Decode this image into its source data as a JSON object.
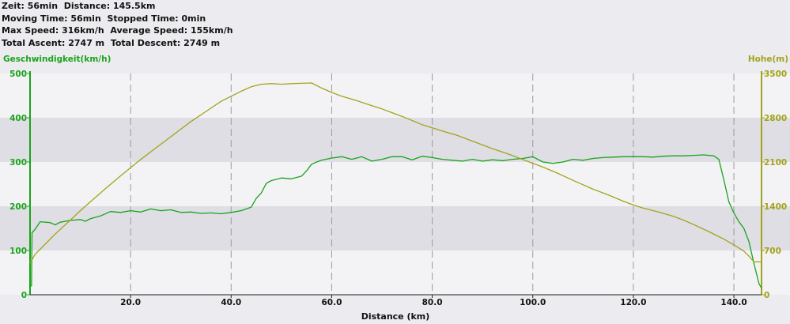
{
  "stats": {
    "line1": [
      "Zeit: 56min",
      "Distance: 145.5km"
    ],
    "line2": [
      "Moving Time: 56min",
      "Stopped Time: 0min"
    ],
    "line3": [
      "Max Speed: 316km/h",
      "Average Speed: 155km/h"
    ],
    "line4": [
      "Total Ascent: 2747 m",
      "Total Descent: 2749 m"
    ]
  },
  "chart_data": {
    "type": "line",
    "xlabel": "Distance (km)",
    "xlim": [
      0,
      145.5
    ],
    "x_ticks": [
      20,
      40,
      60,
      80,
      100,
      120,
      140
    ],
    "x_tick_labels": [
      "20.0",
      "40.0",
      "60.0",
      "80.0",
      "100.0",
      "120.0",
      "140.0"
    ],
    "grid": "vertical dashed lines, alternating horizontal bands",
    "left_axis": {
      "label": "Geschwindigkeit(km/h)",
      "range": [
        0,
        500
      ],
      "ticks": [
        0,
        100,
        200,
        300,
        400,
        500
      ],
      "color": "#1aa31a"
    },
    "right_axis": {
      "label": "Hohe(m)",
      "range": [
        0,
        3500
      ],
      "ticks": [
        0,
        700,
        1400,
        2100,
        2800,
        3500
      ],
      "color": "#a3a31a"
    },
    "series": [
      {
        "axis": "left",
        "color": "#1aa31a",
        "x": [
          0,
          0.3,
          0.4,
          1,
          2,
          4,
          5,
          6,
          8,
          10,
          11,
          12,
          14,
          16,
          18,
          20,
          22,
          24,
          26,
          28,
          30,
          32,
          34,
          36,
          38,
          40,
          42,
          44,
          45,
          46,
          47,
          48,
          50,
          52,
          54,
          55,
          56,
          57,
          58,
          60,
          62,
          64,
          66,
          68,
          70,
          72,
          74,
          76,
          78,
          80,
          82,
          84,
          86,
          88,
          90,
          92,
          94,
          96,
          98,
          100,
          102,
          104,
          106,
          108,
          110,
          112,
          114,
          116,
          118,
          120,
          122,
          124,
          126,
          128,
          130,
          132,
          134,
          136,
          137,
          138,
          139,
          140,
          141,
          142,
          143,
          144,
          145,
          145.5
        ],
        "values": [
          20,
          20,
          140,
          148,
          165,
          163,
          158,
          164,
          168,
          170,
          166,
          172,
          178,
          188,
          186,
          190,
          187,
          194,
          190,
          192,
          186,
          187,
          184,
          185,
          183,
          186,
          190,
          198,
          218,
          230,
          252,
          258,
          264,
          262,
          268,
          280,
          295,
          300,
          304,
          309,
          312,
          306,
          312,
          302,
          306,
          312,
          312,
          305,
          313,
          310,
          306,
          304,
          302,
          306,
          302,
          305,
          303,
          306,
          308,
          312,
          300,
          297,
          300,
          306,
          304,
          308,
          310,
          311,
          312,
          312,
          312,
          311,
          313,
          314,
          314,
          315,
          316,
          314,
          306,
          260,
          210,
          185,
          165,
          150,
          120,
          70,
          25,
          15
        ]
      },
      {
        "axis": "right",
        "color": "#a3a31a",
        "x": [
          0,
          1,
          3,
          5,
          8,
          10,
          12,
          15,
          18,
          20,
          22,
          25,
          28,
          30,
          32,
          35,
          38,
          40,
          42,
          44,
          46,
          48,
          50,
          52,
          54,
          56,
          58,
          60,
          62,
          65,
          68,
          70,
          72,
          75,
          78,
          80,
          82,
          85,
          88,
          90,
          92,
          95,
          98,
          100,
          102,
          105,
          108,
          110,
          112,
          115,
          118,
          120,
          122,
          125,
          128,
          130,
          132,
          135,
          138,
          140,
          142,
          143,
          144,
          145,
          145.5
        ],
        "values": [
          500,
          640,
          800,
          960,
          1180,
          1330,
          1470,
          1680,
          1880,
          2010,
          2140,
          2320,
          2500,
          2620,
          2740,
          2900,
          3060,
          3140,
          3220,
          3290,
          3330,
          3340,
          3330,
          3340,
          3345,
          3350,
          3270,
          3200,
          3140,
          3070,
          2990,
          2940,
          2880,
          2790,
          2690,
          2640,
          2590,
          2520,
          2430,
          2370,
          2310,
          2230,
          2140,
          2080,
          2020,
          1920,
          1810,
          1740,
          1670,
          1580,
          1480,
          1420,
          1370,
          1310,
          1240,
          1180,
          1110,
          1000,
          880,
          790,
          690,
          610,
          520,
          520,
          520
        ]
      }
    ]
  }
}
